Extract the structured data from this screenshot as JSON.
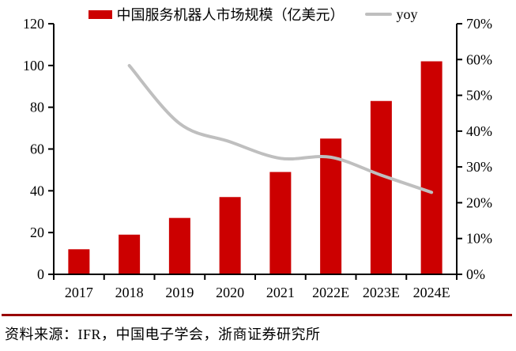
{
  "legend": [
    {
      "label": "中国服务机器人市场规模（亿美元）",
      "color": "#CC0000",
      "type": "bar"
    },
    {
      "label": "yoy",
      "color": "#BFBFBF",
      "type": "line"
    }
  ],
  "footer": {
    "source": "资料来源：IFR，中国电子学会，浙商证券研究所",
    "rule_color": "#990000"
  },
  "colors": {
    "bar": "#CC0000",
    "line": "#BFBFBF",
    "axis": "#000000",
    "text": "#000000"
  },
  "chart_data": {
    "type": "bar",
    "subtype": "bar+line-combo",
    "categories": [
      "2017",
      "2018",
      "2019",
      "2020",
      "2021",
      "2022E",
      "2023E",
      "2024E"
    ],
    "series": [
      {
        "name": "中国服务机器人市场规模（亿美元）",
        "type": "bar",
        "axis": "left",
        "color": "#CC0000",
        "values": [
          12,
          19,
          27,
          37,
          49,
          65,
          83,
          102
        ]
      },
      {
        "name": "yoy",
        "type": "line",
        "axis": "right",
        "color": "#BFBFBF",
        "smooth": true,
        "unit": "%",
        "values": [
          null,
          58.3,
          42.1,
          37.0,
          32.4,
          32.7,
          27.7,
          22.9
        ]
      }
    ],
    "left_axis": {
      "min": 0,
      "max": 120,
      "step": 20,
      "ticks": [
        "0",
        "20",
        "40",
        "60",
        "80",
        "100",
        "120"
      ]
    },
    "right_axis": {
      "min": 0,
      "max": 70,
      "step": 10,
      "ticks": [
        "0%",
        "10%",
        "20%",
        "30%",
        "40%",
        "50%",
        "60%",
        "70%"
      ]
    },
    "xlabel": "",
    "ylabel": "",
    "grid": false,
    "legend_position": "top-center"
  }
}
